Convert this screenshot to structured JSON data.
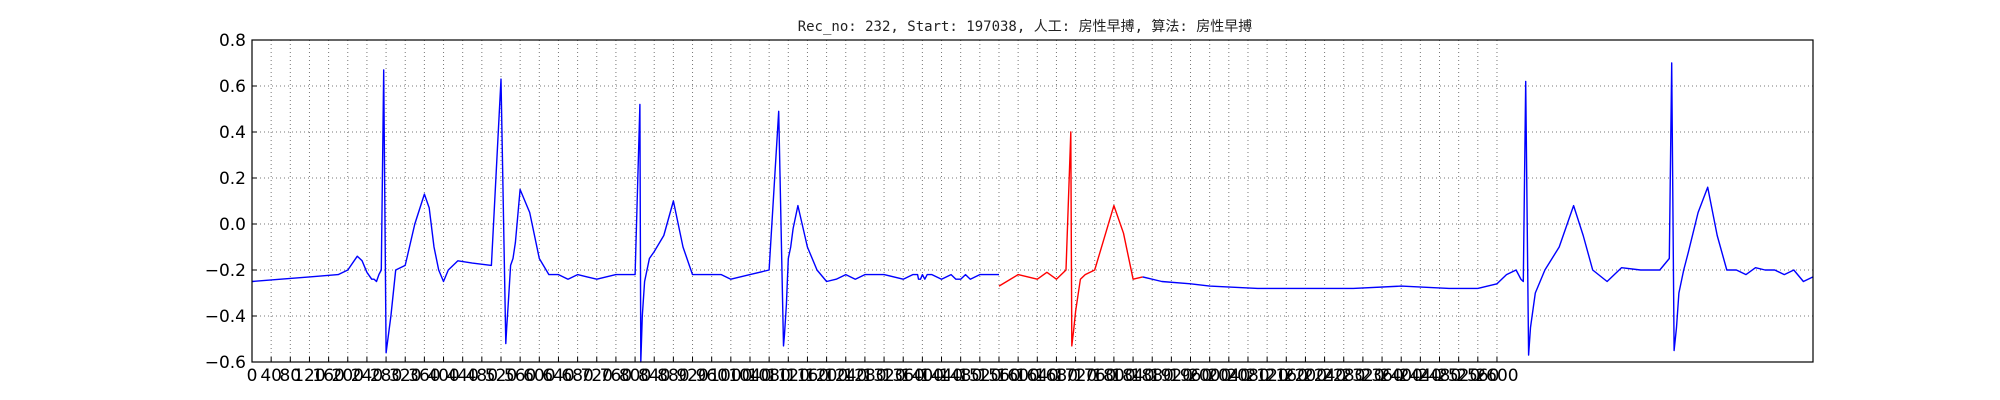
{
  "chart_data": {
    "type": "line",
    "title": "Rec_no: 232, Start: 197038, 人工: 房性早搏, 算法: 房性早搏",
    "xlabel": "",
    "ylabel": "",
    "ylim": [
      -0.6,
      0.8
    ],
    "y_ticks": [
      "−0.6",
      "−0.4",
      "−0.2",
      "0.0",
      "0.2",
      "0.4",
      "0.6",
      "0.8"
    ],
    "x_ticks": [
      "0",
      "40",
      "80",
      "120",
      "160",
      "200",
      "240",
      "280",
      "320",
      "360",
      "400",
      "440",
      "480",
      "520",
      "560",
      "600",
      "640",
      "680",
      "720",
      "760",
      "800",
      "840",
      "880",
      "920",
      "960",
      "1000",
      "1040",
      "1080",
      "1120",
      "1160",
      "1200",
      "1240",
      "1280",
      "1320",
      "1360",
      "1400",
      "1440",
      "1480",
      "1520",
      "1560",
      "1600",
      "1640",
      "1680",
      "1720",
      "1760",
      "1800",
      "1840",
      "1880",
      "1920",
      "1960",
      "2000",
      "2040",
      "2080",
      "2120",
      "2160",
      "2200",
      "2240",
      "2280",
      "2320",
      "2360",
      "2400",
      "2440",
      "2480",
      "2520",
      "2560",
      "2600"
    ],
    "xlim": [
      0,
      3260
    ],
    "grid": true,
    "series": [
      {
        "color": "#0000ff",
        "x": [
          0,
          60,
          120,
          180,
          200,
          220,
          230,
          240,
          250,
          255,
          260,
          265,
          270,
          275,
          280,
          290,
          300,
          320,
          340,
          360,
          370,
          380,
          390,
          400,
          410,
          430,
          460,
          500,
          520,
          530,
          532,
          535,
          540,
          545,
          550,
          560,
          580,
          600,
          620,
          640,
          660,
          680,
          700,
          720,
          760,
          800,
          810,
          812,
          815,
          820,
          825,
          830,
          840,
          860,
          880,
          900,
          920,
          940,
          960,
          980,
          1000,
          1040,
          1080,
          1100,
          1110,
          1112,
          1116,
          1120,
          1125,
          1130,
          1140,
          1160,
          1180,
          1200,
          1220,
          1240,
          1260,
          1280,
          1320,
          1360,
          1380,
          1390,
          1392,
          1396,
          1400,
          1405,
          1410,
          1420,
          1440,
          1460,
          1470,
          1480,
          1490,
          1500,
          1520,
          1550,
          1560
        ],
        "y": [
          -0.25,
          -0.24,
          -0.23,
          -0.22,
          -0.2,
          -0.14,
          -0.16,
          -0.21,
          -0.24,
          -0.24,
          -0.25,
          -0.22,
          -0.2,
          0.67,
          -0.56,
          -0.4,
          -0.2,
          -0.18,
          0.0,
          0.13,
          0.07,
          -0.1,
          -0.2,
          -0.25,
          -0.2,
          -0.16,
          -0.17,
          -0.18,
          0.63,
          -0.52,
          -0.45,
          -0.35,
          -0.18,
          -0.15,
          -0.08,
          0.15,
          0.05,
          -0.15,
          -0.22,
          -0.22,
          -0.24,
          -0.22,
          -0.23,
          -0.24,
          -0.22,
          -0.22,
          0.52,
          -0.6,
          -0.4,
          -0.25,
          -0.2,
          -0.15,
          -0.12,
          -0.05,
          0.1,
          -0.1,
          -0.22,
          -0.22,
          -0.22,
          -0.22,
          -0.24,
          -0.22,
          -0.2,
          0.49,
          -0.53,
          -0.48,
          -0.35,
          -0.15,
          -0.1,
          -0.02,
          0.08,
          -0.1,
          -0.2,
          -0.25,
          -0.24,
          -0.22,
          -0.24,
          -0.22,
          -0.22,
          -0.24,
          -0.22,
          -0.22,
          -0.24,
          -0.24,
          -0.22,
          -0.24,
          -0.22,
          -0.22,
          -0.24,
          -0.22,
          -0.24,
          -0.24,
          -0.22,
          -0.24,
          -0.22,
          -0.22,
          -0.22
        ]
      },
      {
        "color": "#ff0000",
        "x": [
          1560,
          1600,
          1640,
          1660,
          1680,
          1700,
          1710,
          1712,
          1716,
          1720,
          1730,
          1740,
          1760,
          1780,
          1800,
          1820,
          1840,
          1860
        ],
        "y": [
          -0.27,
          -0.22,
          -0.24,
          -0.21,
          -0.24,
          -0.2,
          0.4,
          -0.53,
          -0.46,
          -0.38,
          -0.24,
          -0.22,
          -0.2,
          -0.06,
          0.08,
          -0.04,
          -0.24,
          -0.23
        ]
      },
      {
        "color": "#0000ff",
        "x": [
          1860,
          1900,
          1960,
          2000,
          2100,
          2200,
          2300,
          2400,
          2500,
          2560,
          2600,
          2620,
          2640,
          2650,
          2655,
          2660,
          2666,
          2670,
          2680,
          2700,
          2730,
          2760,
          2780,
          2800,
          2830,
          2860,
          2900,
          2940,
          2960,
          2965,
          2970,
          2975,
          2980,
          2990,
          3000,
          3020,
          3040,
          3060,
          3080,
          3100,
          3120,
          3140,
          3160,
          3180,
          3200,
          3220,
          3240,
          3260
        ],
        "y": [
          -0.23,
          -0.25,
          -0.26,
          -0.27,
          -0.28,
          -0.28,
          -0.28,
          -0.27,
          -0.28,
          -0.28,
          -0.26,
          -0.22,
          -0.2,
          -0.24,
          -0.25,
          0.62,
          -0.57,
          -0.45,
          -0.3,
          -0.2,
          -0.1,
          0.08,
          -0.05,
          -0.2,
          -0.25,
          -0.19,
          -0.2,
          -0.2,
          -0.15,
          0.7,
          -0.55,
          -0.45,
          -0.3,
          -0.2,
          -0.12,
          0.05,
          0.16,
          -0.05,
          -0.2,
          -0.2,
          -0.22,
          -0.19,
          -0.2,
          -0.2,
          -0.22,
          -0.2,
          -0.25,
          -0.23
        ]
      }
    ]
  }
}
